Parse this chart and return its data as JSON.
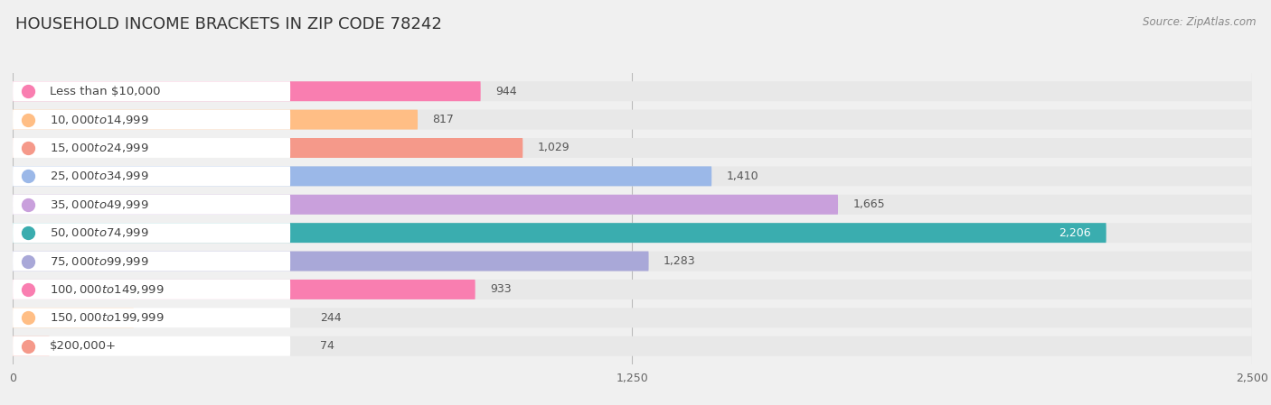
{
  "title": "HOUSEHOLD INCOME BRACKETS IN ZIP CODE 78242",
  "source": "Source: ZipAtlas.com",
  "categories": [
    "Less than $10,000",
    "$10,000 to $14,999",
    "$15,000 to $24,999",
    "$25,000 to $34,999",
    "$35,000 to $49,999",
    "$50,000 to $74,999",
    "$75,000 to $99,999",
    "$100,000 to $149,999",
    "$150,000 to $199,999",
    "$200,000+"
  ],
  "values": [
    944,
    817,
    1029,
    1410,
    1665,
    2206,
    1283,
    933,
    244,
    74
  ],
  "colors": [
    "#F97EB0",
    "#FFBE85",
    "#F5998A",
    "#9BB8E8",
    "#C9A0DC",
    "#3AADAF",
    "#A9A8D8",
    "#F97EB0",
    "#FFBE85",
    "#F5998A"
  ],
  "xlim": [
    0,
    2500
  ],
  "xticks": [
    0,
    1250,
    2500
  ],
  "background_color": "#f0f0f0",
  "row_bg_color": "#e8e8e8",
  "title_fontsize": 13,
  "label_fontsize": 9.5,
  "value_fontsize": 9
}
